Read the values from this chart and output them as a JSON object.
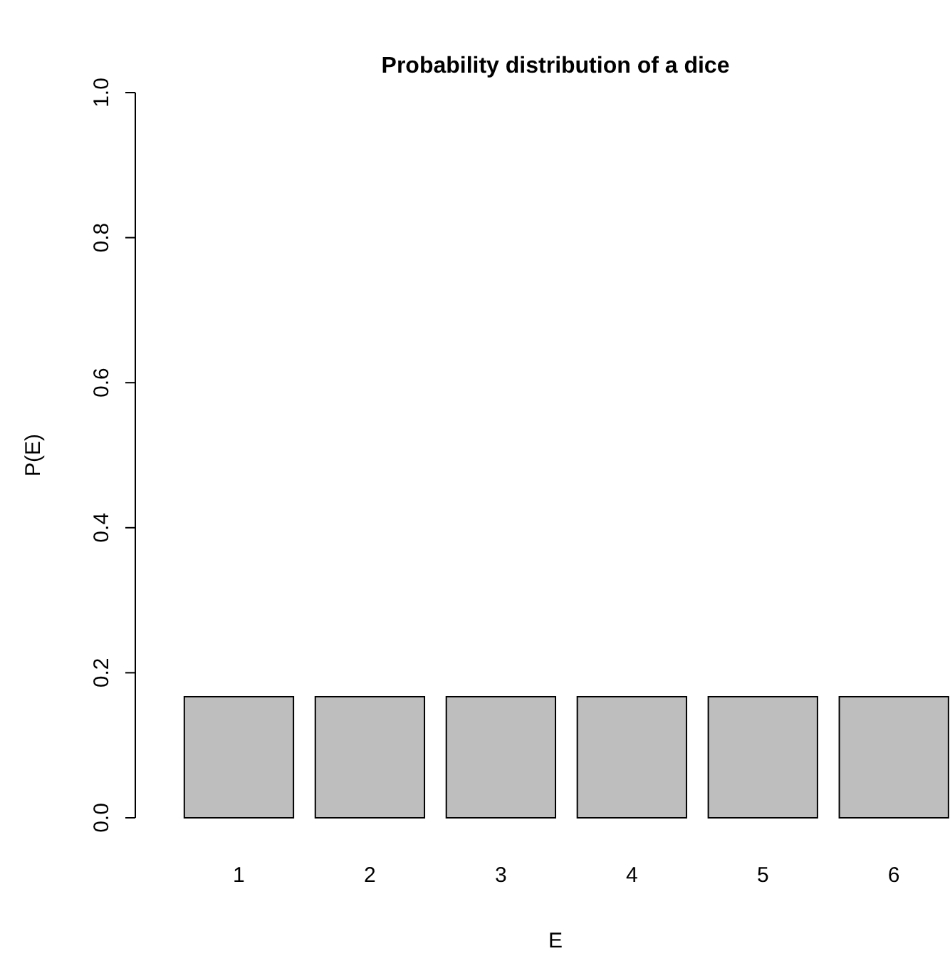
{
  "chart_data": {
    "type": "bar",
    "title": "Probability distribution of a dice",
    "xlabel": "E",
    "ylabel": "P(E)",
    "categories": [
      "1",
      "2",
      "3",
      "4",
      "5",
      "6"
    ],
    "values": [
      0.167,
      0.167,
      0.167,
      0.167,
      0.167,
      0.167
    ],
    "color": "#bebebe",
    "ylim": [
      0,
      1
    ],
    "yticks": [
      {
        "value": 0,
        "label": "0.0"
      },
      {
        "value": 0.2,
        "label": "0.2"
      },
      {
        "value": 0.4,
        "label": "0.4"
      },
      {
        "value": 0.6,
        "label": "0.6"
      },
      {
        "value": 0.8,
        "label": "0.8"
      },
      {
        "value": 1,
        "label": "1.0"
      }
    ],
    "grid": false
  }
}
